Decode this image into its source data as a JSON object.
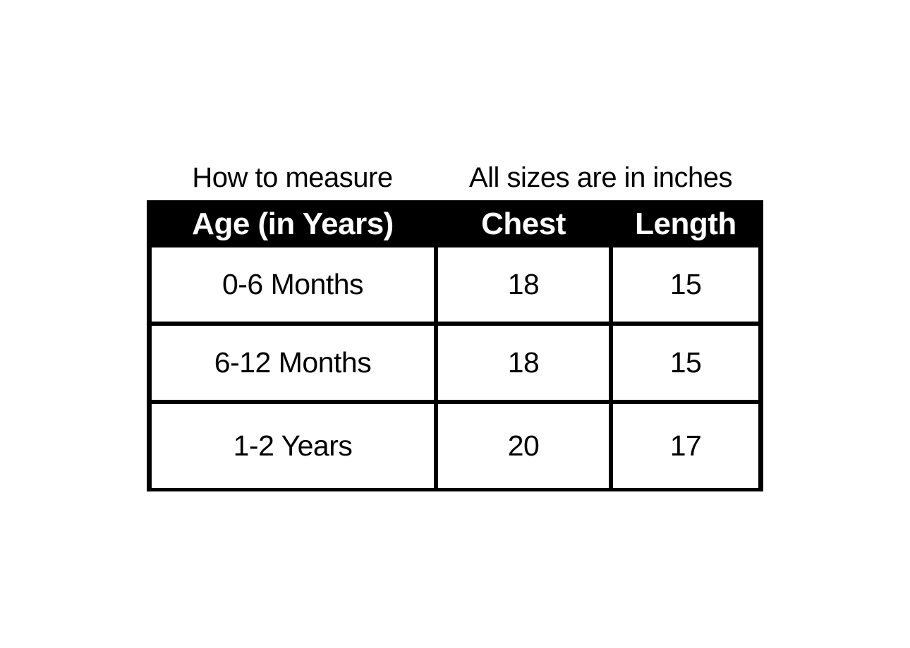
{
  "captions": {
    "left": "How to measure",
    "right": "All sizes are in inches"
  },
  "size_chart": {
    "columns": {
      "age": "Age (in Years)",
      "chest": "Chest",
      "length": "Length"
    },
    "rows": [
      {
        "age": "0-6 Months",
        "chest": "18",
        "length": "15"
      },
      {
        "age": "6-12 Months",
        "chest": "18",
        "length": "15"
      },
      {
        "age": "1-2 Years",
        "chest": "20",
        "length": "17"
      }
    ],
    "colors": {
      "header_bg": "#000000",
      "header_text": "#ffffff",
      "border": "#000000",
      "body_bg": "#ffffff",
      "body_text": "#000000"
    }
  },
  "chart_data": {
    "type": "table",
    "title": "How to measure",
    "subtitle": "All sizes are in inches",
    "units": "inches",
    "columns": [
      "Age (in Years)",
      "Chest",
      "Length"
    ],
    "rows": [
      [
        "0-6 Months",
        18,
        15
      ],
      [
        "6-12 Months",
        18,
        15
      ],
      [
        "1-2 Years",
        20,
        17
      ]
    ]
  }
}
